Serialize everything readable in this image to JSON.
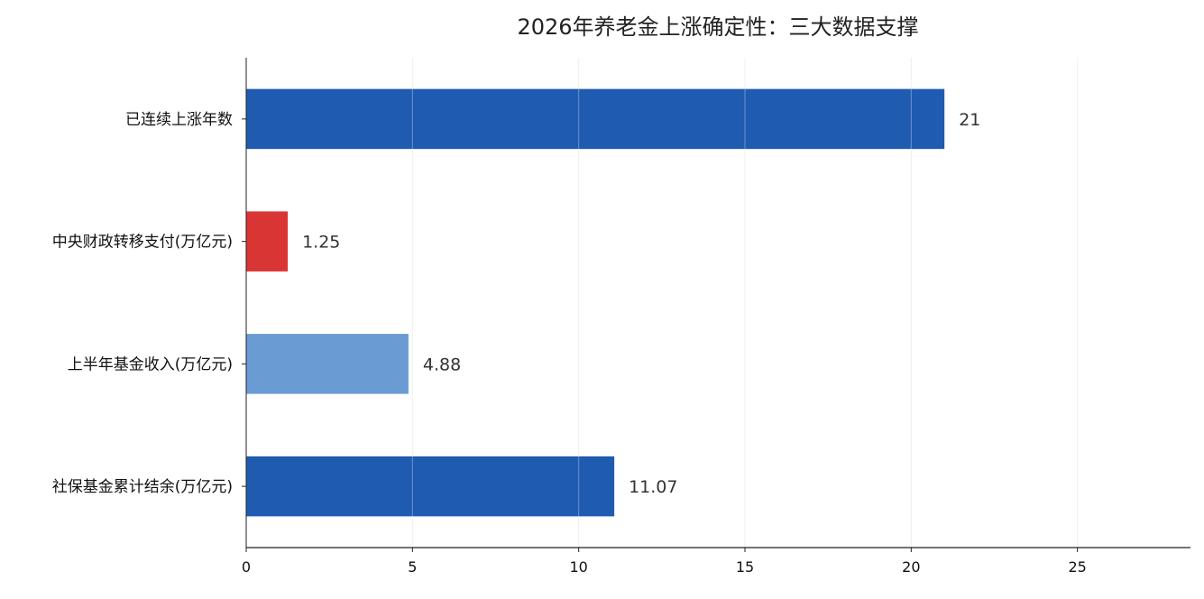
{
  "chart_data": {
    "type": "bar",
    "orientation": "horizontal",
    "title": "2026年养老金上涨确定性：三大数据支撑",
    "categories": [
      "已连续上涨年数",
      "中央财政转移支付(万亿元)",
      "上半年基金收入(万亿元)",
      "社保基金累计结余(万亿元)"
    ],
    "values": [
      21,
      1.25,
      4.88,
      11.07
    ],
    "value_labels": [
      "21",
      "1.25",
      "4.88",
      "11.07"
    ],
    "bar_colors": [
      "#1f5bb0",
      "#d93535",
      "#6b9bd3",
      "#1f5bb0"
    ],
    "xlim": [
      0,
      28.4
    ],
    "x_ticks": [
      0,
      5,
      10,
      15,
      20,
      25
    ],
    "x_tick_labels": [
      "0",
      "5",
      "10",
      "15",
      "20",
      "25"
    ],
    "grid": true,
    "xlabel": "",
    "ylabel": ""
  }
}
